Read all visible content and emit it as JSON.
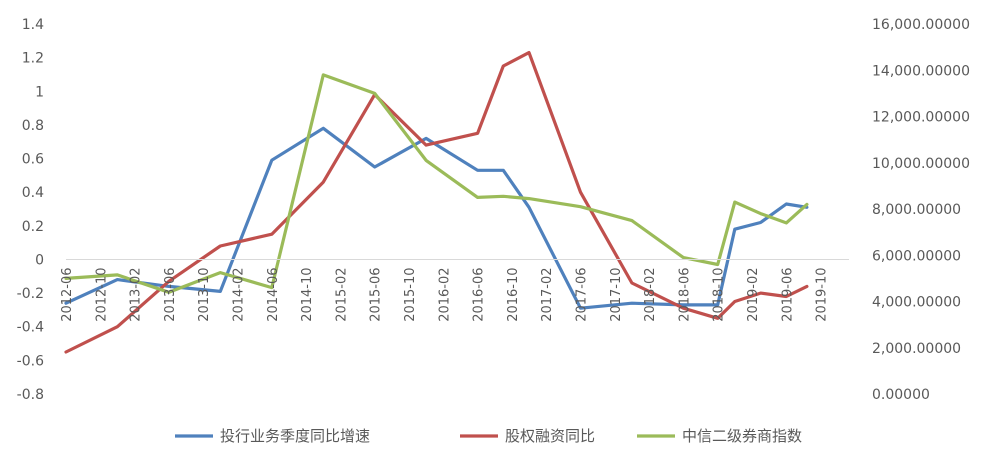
{
  "chart_data": {
    "type": "line",
    "title": "",
    "x": [
      "2012-06",
      "2012-10",
      "2013-02",
      "2013-06",
      "2013-10",
      "2014-02",
      "2014-06",
      "2014-10",
      "2015-02",
      "2015-06",
      "2015-10",
      "2016-02",
      "2016-06",
      "2016-10",
      "2017-02",
      "2017-06",
      "2017-10",
      "2018-02",
      "2018-06",
      "2018-10",
      "2019-02",
      "2019-06",
      "2019-10"
    ],
    "y_left": {
      "min": -0.8,
      "max": 1.4,
      "ticks": [
        "-0.8",
        "-0.6",
        "-0.4",
        "-0.2",
        "0",
        "0.2",
        "0.4",
        "0.6",
        "0.8",
        "1",
        "1.2",
        "1.4"
      ]
    },
    "y_right": {
      "min": 0,
      "max": 16000,
      "ticks": [
        "0.00000",
        "2,000.00000",
        "4,000.00000",
        "6,000.00000",
        "8,000.00000",
        "10,000.00000",
        "12,000.00000",
        "14,000.00000",
        "16,000.00000"
      ]
    },
    "grid": false,
    "legend_position": "bottom",
    "series": [
      {
        "name": "投行业务季度同比增速",
        "axis": "left",
        "color": "#4F81BD",
        "points": [
          [
            0,
            -0.26
          ],
          [
            1.5,
            -0.12
          ],
          [
            3,
            -0.16
          ],
          [
            4.5,
            -0.19
          ],
          [
            6,
            0.59
          ],
          [
            7.5,
            0.78
          ],
          [
            9,
            0.55
          ],
          [
            10.5,
            0.72
          ],
          [
            12,
            0.53
          ],
          [
            12.75,
            0.53
          ],
          [
            13.5,
            0.31
          ],
          [
            15,
            -0.29
          ],
          [
            16.5,
            -0.26
          ],
          [
            18,
            -0.27
          ],
          [
            19,
            -0.27
          ],
          [
            19.5,
            0.18
          ],
          [
            20.25,
            0.22
          ],
          [
            21,
            0.33
          ],
          [
            21.6,
            0.31
          ]
        ]
      },
      {
        "name": "股权融资同比",
        "axis": "left",
        "color": "#C0504D",
        "points": [
          [
            0,
            -0.55
          ],
          [
            1.5,
            -0.4
          ],
          [
            3,
            -0.13
          ],
          [
            4.5,
            0.08
          ],
          [
            6,
            0.15
          ],
          [
            7.5,
            0.46
          ],
          [
            9,
            0.98
          ],
          [
            10.5,
            0.68
          ],
          [
            12,
            0.75
          ],
          [
            12.75,
            1.15
          ],
          [
            13.5,
            1.23
          ],
          [
            15,
            0.4
          ],
          [
            16.5,
            -0.14
          ],
          [
            18,
            -0.29
          ],
          [
            19,
            -0.35
          ],
          [
            19.5,
            -0.25
          ],
          [
            20.25,
            -0.2
          ],
          [
            21,
            -0.22
          ],
          [
            21.6,
            -0.16
          ]
        ]
      },
      {
        "name": "中信二级券商指数",
        "axis": "right",
        "color": "#9BBB59",
        "points": [
          [
            0,
            5000
          ],
          [
            1.5,
            5150
          ],
          [
            3,
            4400
          ],
          [
            4.5,
            5250
          ],
          [
            6,
            4600
          ],
          [
            7.5,
            13800
          ],
          [
            9,
            13000
          ],
          [
            10.5,
            10100
          ],
          [
            12,
            8500
          ],
          [
            12.75,
            8550
          ],
          [
            13.5,
            8450
          ],
          [
            15,
            8100
          ],
          [
            16.5,
            7500
          ],
          [
            18,
            5900
          ],
          [
            19,
            5600
          ],
          [
            19.5,
            8300
          ],
          [
            20.25,
            7800
          ],
          [
            21,
            7400
          ],
          [
            21.6,
            8200
          ]
        ]
      }
    ]
  }
}
